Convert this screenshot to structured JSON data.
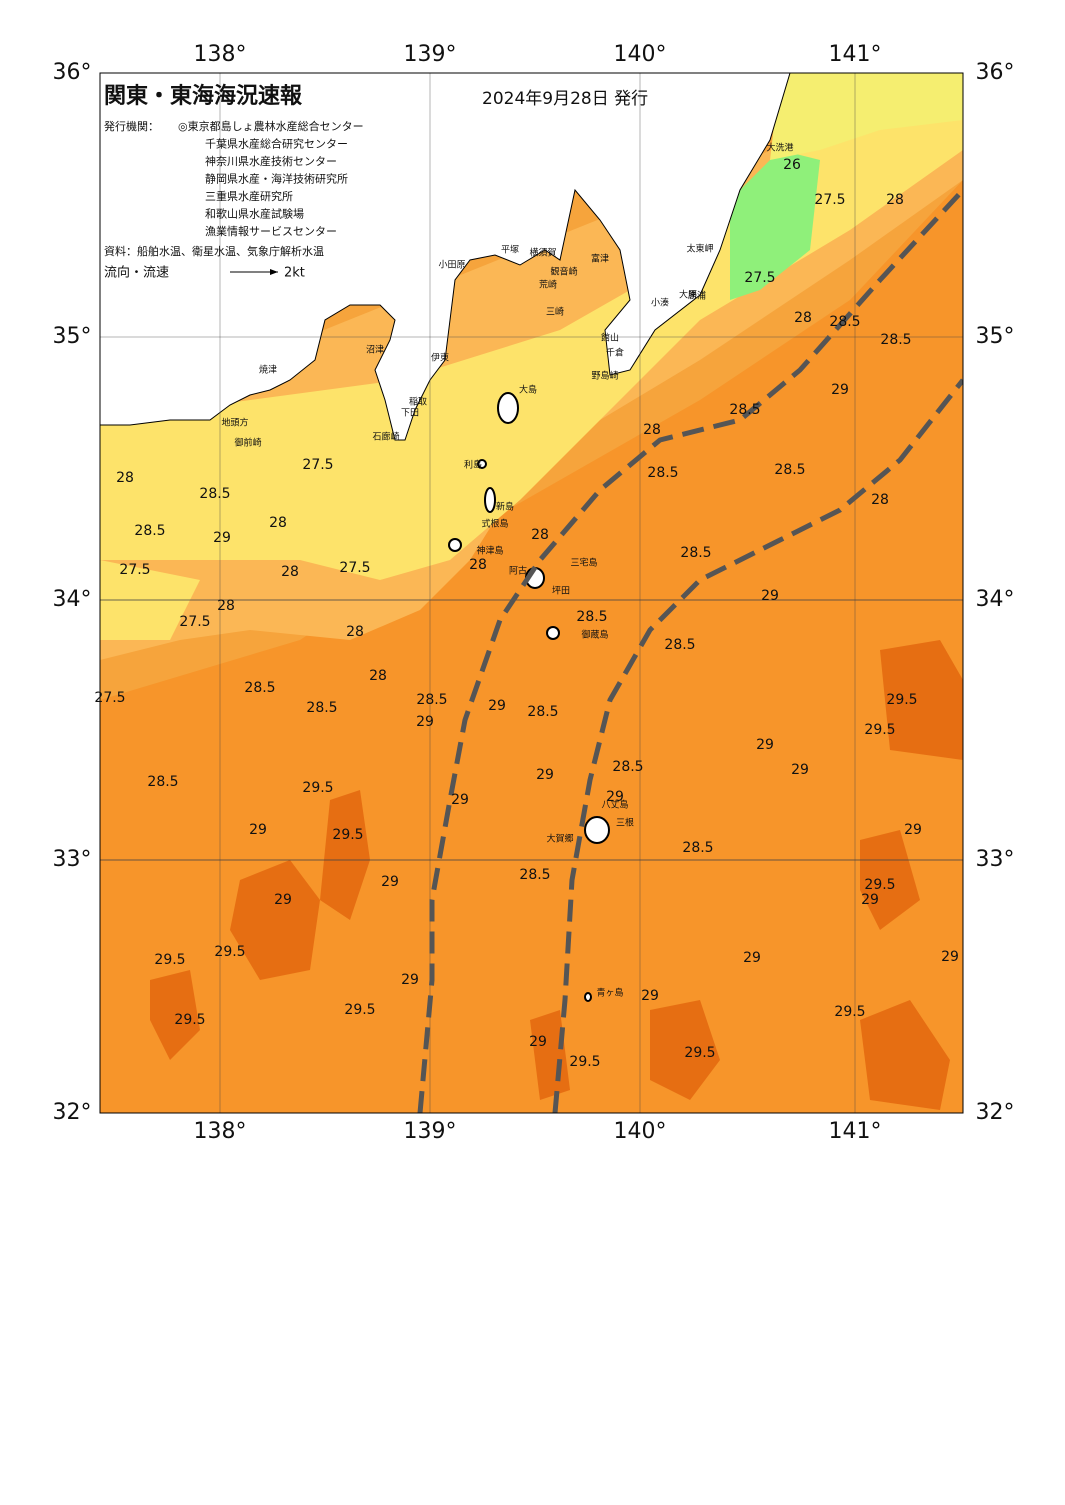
{
  "header": {
    "title": "関東・東海海況速報",
    "date": "2024年9月28日 発行",
    "issuer_label": "発行機関：",
    "issuers": [
      "◎東京都島しょ農林水産総合センター",
      "千葉県水産総合研究センター",
      "神奈川県水産技術センター",
      "静岡県水産・海洋技術研究所",
      "三重県水産研究所",
      "和歌山県水産試験場",
      "漁業情報サービスセンター"
    ],
    "source": "資料：船舶水温、衛星水温、気象庁解析水温",
    "flow_label": "流向・流速",
    "flow_unit": "2kt"
  },
  "axes": {
    "lon_labels": [
      "138°",
      "139°",
      "140°",
      "141°"
    ],
    "lat_labels": [
      "36°",
      "35°",
      "34°",
      "33°",
      "32°"
    ]
  },
  "places": [
    "小田原",
    "平塚",
    "横須賀",
    "観音崎",
    "富津",
    "荒崎",
    "三崎",
    "館山",
    "千倉",
    "野島崎",
    "大原",
    "勝浦",
    "小湊",
    "太東岬",
    "大洗港",
    "沼津",
    "伊東",
    "焼津",
    "稲取",
    "下田",
    "石廊崎",
    "御前崎",
    "地頭方",
    "大島",
    "利島",
    "新島",
    "式根島",
    "神津島",
    "三宅島",
    "阿古",
    "坪田",
    "御蔵島",
    "八丈島",
    "三根",
    "大賀郷",
    "青ヶ島"
  ],
  "contour_labels": [
    "26",
    "27.5",
    "28",
    "27.5",
    "28",
    "28.5",
    "28.5",
    "29",
    "28",
    "28.5",
    "28.5",
    "28",
    "28",
    "28.5",
    "27.5",
    "28",
    "28.5",
    "29",
    "27.5",
    "28",
    "28",
    "27.5",
    "27.5",
    "28",
    "28",
    "28",
    "28.5",
    "28",
    "28.5",
    "28.5",
    "28.5",
    "29",
    "28.5",
    "29.5",
    "27.5",
    "28.5",
    "28.5",
    "29",
    "29",
    "28.5",
    "28.5",
    "29",
    "29",
    "29.5",
    "29.5",
    "29.5",
    "29",
    "29",
    "28.5",
    "29",
    "29.5",
    "29.5",
    "29.5",
    "29.5",
    "29",
    "29",
    "29",
    "29",
    "29",
    "29",
    "29.5",
    "29.5",
    "29",
    "29.5",
    "29",
    "29",
    "29.5",
    "29",
    "28.5",
    "28.5"
  ]
}
